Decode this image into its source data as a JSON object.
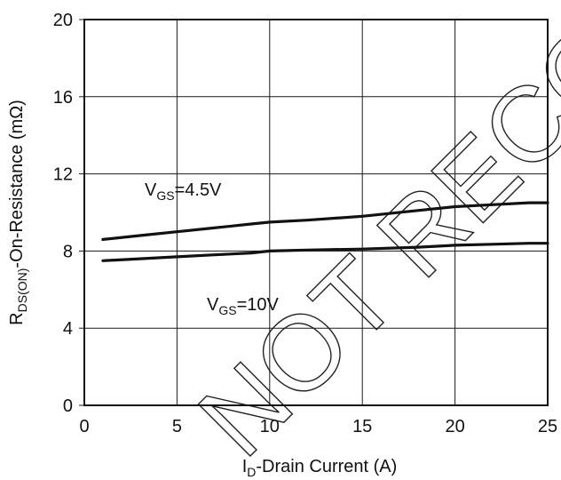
{
  "chart_data": {
    "type": "line",
    "x": [
      1,
      3,
      5,
      7,
      9,
      10,
      12,
      15,
      18,
      20,
      22,
      24,
      25
    ],
    "series": [
      {
        "name": "V_GS=4.5V",
        "name_main": "V",
        "name_sub": "GS",
        "name_rest": "=4.5V",
        "values": [
          8.6,
          8.8,
          9.0,
          9.2,
          9.4,
          9.5,
          9.6,
          9.8,
          10.1,
          10.3,
          10.4,
          10.5,
          10.5
        ]
      },
      {
        "name": "V_GS=10V",
        "name_main": "V",
        "name_sub": "GS",
        "name_rest": "=10V",
        "values": [
          7.5,
          7.6,
          7.7,
          7.8,
          7.9,
          8.0,
          8.05,
          8.1,
          8.2,
          8.3,
          8.35,
          8.4,
          8.4
        ]
      }
    ],
    "xlabel": "I_D-Drain Current (A)",
    "xlabel_main": "I",
    "xlabel_sub": "D",
    "xlabel_rest": "-Drain Current (A)",
    "ylabel": "R_DS(ON)-On-Resistance (mΩ)",
    "ylabel_main": "R",
    "ylabel_sub": "DS(ON)",
    "ylabel_rest": "-On-Resistance (mΩ)",
    "xlim": [
      0,
      25
    ],
    "ylim": [
      0,
      20
    ],
    "xticks": [
      "0",
      "5",
      "10",
      "15",
      "20",
      "25"
    ],
    "yticks": [
      "0",
      "4",
      "8",
      "12",
      "16",
      "20"
    ],
    "grid": true
  },
  "watermark": "NOT RECOMMENDED FOR NEW DESIGN"
}
